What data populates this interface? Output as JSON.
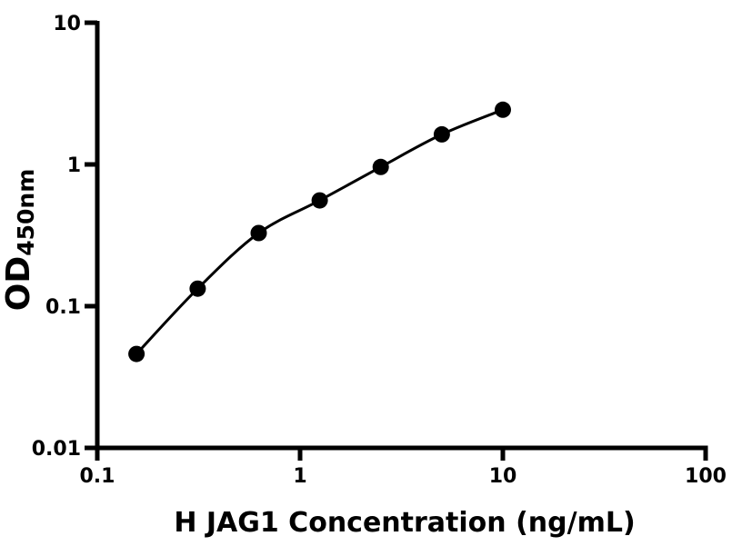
{
  "chart_data": {
    "type": "scatter",
    "subtype": "log-log standard curve",
    "title": "",
    "xlabel": "H JAG1 Concentration (ng/mL)",
    "ylabel": "OD",
    "ylabel_sub": "450nm",
    "xlim": [
      0.1,
      100
    ],
    "ylim": [
      0.01,
      10
    ],
    "x_scale": "log",
    "y_scale": "log",
    "grid": false,
    "legend": "none",
    "x": [
      0.156,
      0.3125,
      0.625,
      1.25,
      2.5,
      5,
      10
    ],
    "y": [
      0.046,
      0.133,
      0.328,
      0.557,
      0.96,
      1.63,
      2.43
    ],
    "x_ticks": [
      {
        "value": 0.1,
        "label": "0.1"
      },
      {
        "value": 1,
        "label": "1"
      },
      {
        "value": 10,
        "label": "10"
      },
      {
        "value": 100,
        "label": "100"
      }
    ],
    "y_ticks": [
      {
        "value": 0.01,
        "label": "0.01"
      },
      {
        "value": 0.1,
        "label": "0.1"
      },
      {
        "value": 1,
        "label": "1"
      },
      {
        "value": 10,
        "label": "10"
      }
    ],
    "marker_color": "#000000",
    "line_color": "#000000",
    "axis_color": "#000000"
  }
}
